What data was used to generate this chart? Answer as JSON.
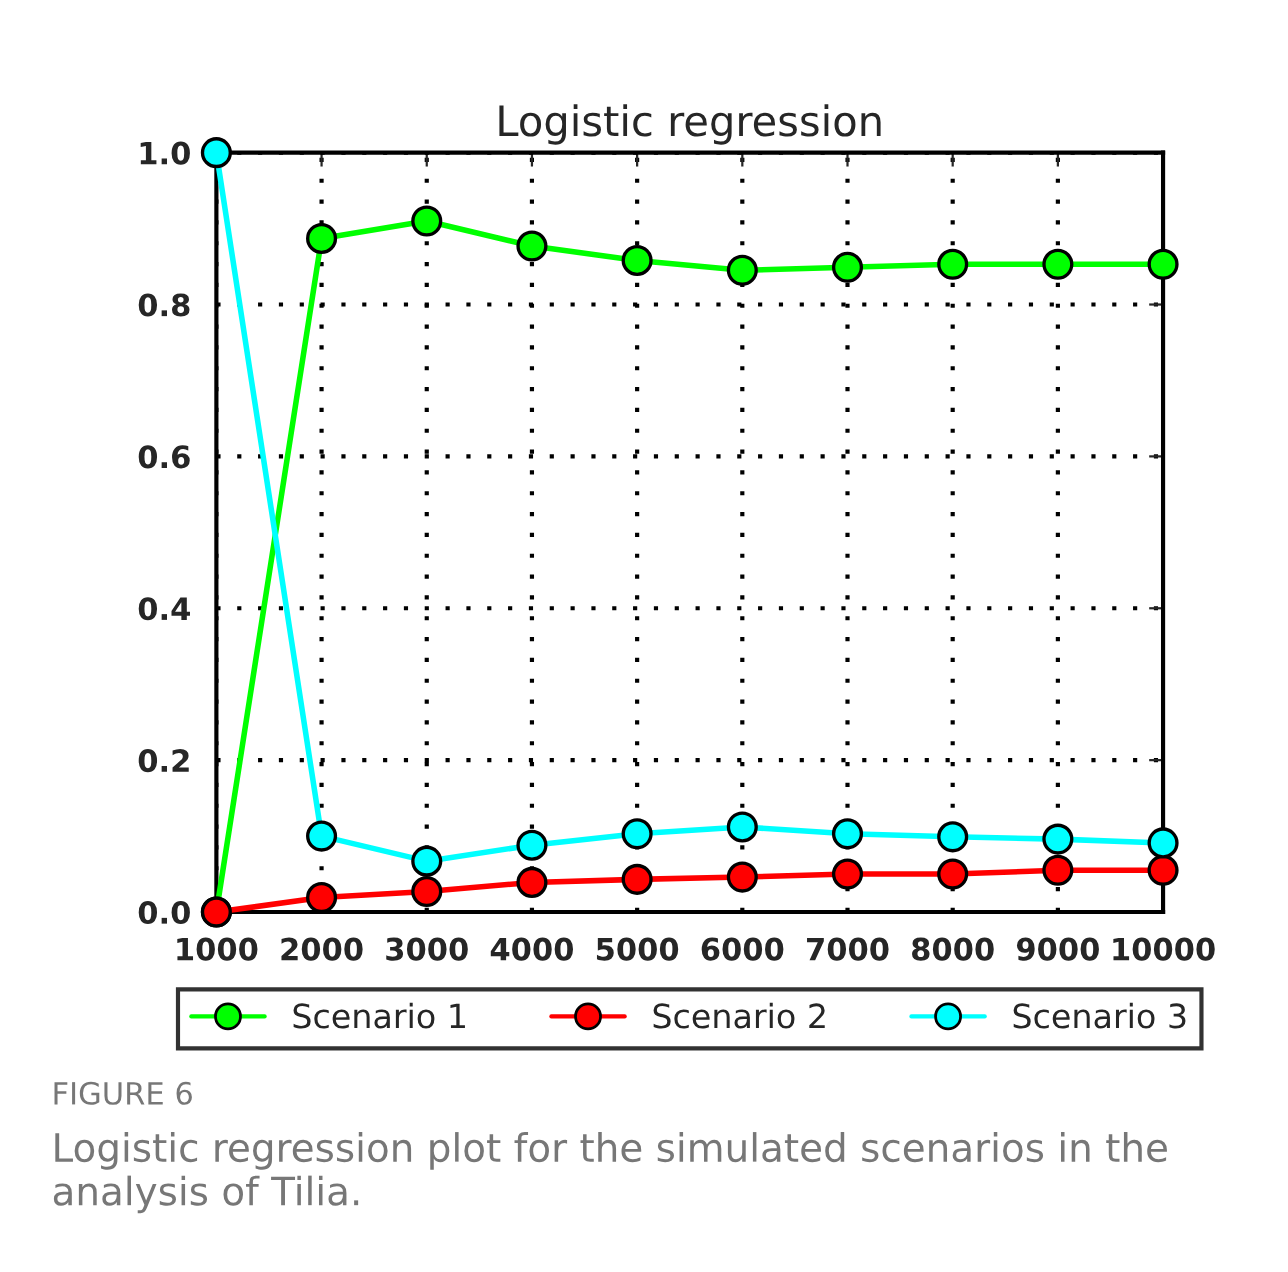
{
  "chart_data": {
    "type": "line",
    "title": "Logistic regression",
    "x": [
      1000,
      2000,
      3000,
      4000,
      5000,
      6000,
      7000,
      8000,
      9000,
      10000
    ],
    "series": [
      {
        "name": "Scenario 1",
        "color": "#00ff00",
        "values": [
          0.0,
          0.887,
          0.91,
          0.877,
          0.858,
          0.845,
          0.849,
          0.853,
          0.853,
          0.853
        ]
      },
      {
        "name": "Scenario 2",
        "color": "#ff0000",
        "values": [
          0.0,
          0.019,
          0.027,
          0.039,
          0.043,
          0.046,
          0.05,
          0.05,
          0.055,
          0.055
        ]
      },
      {
        "name": "Scenario 3",
        "color": "#00ffff",
        "values": [
          1.0,
          0.1,
          0.067,
          0.088,
          0.103,
          0.112,
          0.103,
          0.099,
          0.096,
          0.091
        ]
      }
    ],
    "xlim": [
      1000,
      10000
    ],
    "xticks": [
      1000,
      2000,
      3000,
      4000,
      5000,
      6000,
      7000,
      8000,
      9000,
      10000
    ],
    "ylim": [
      0.0,
      1.0
    ],
    "yticks": [
      {
        "value": 0,
        "label": "0.0"
      },
      {
        "value": 0.2,
        "label": "0.2"
      },
      {
        "value": 0.4,
        "label": "0.4"
      },
      {
        "value": 0.6,
        "label": "0.6"
      },
      {
        "value": 0.8,
        "label": "0.8"
      },
      {
        "value": 1.0,
        "label": "1.0"
      }
    ],
    "grid": true,
    "legend": "bottom",
    "marker": "circle",
    "line_style": "solid",
    "annotations": [
      "FIGURE 6",
      "Logistic regression plot for the simulated scenarios in the analysis of Tilia."
    ]
  }
}
